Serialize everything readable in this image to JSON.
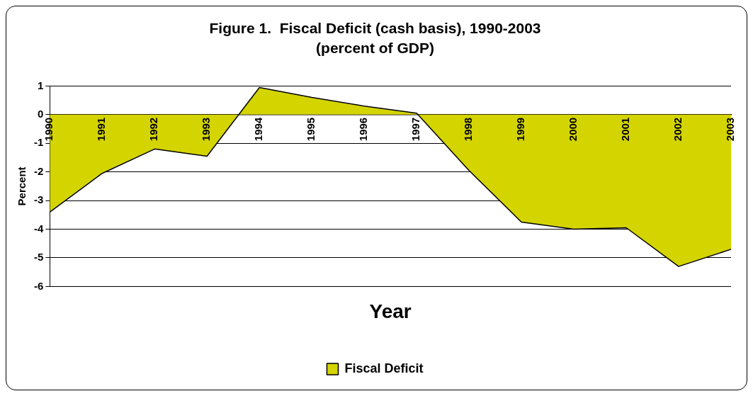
{
  "chart_data": {
    "type": "area",
    "title": "Figure 1.  Fiscal Deficit (cash basis), 1990-2003",
    "subtitle": "(percent of GDP)",
    "xlabel": "Year",
    "ylabel": "Percent",
    "categories": [
      "1990",
      "1991",
      "1992",
      "1993",
      "1994",
      "1995",
      "1996",
      "1997",
      "1998",
      "1999",
      "2000",
      "2001",
      "2002",
      "2003"
    ],
    "series": [
      {
        "name": "Fiscal Deficit",
        "color": "#d4d400",
        "values": [
          -3.4,
          -2.05,
          -1.2,
          -1.45,
          0.95,
          0.6,
          0.3,
          0.05,
          -1.95,
          -3.75,
          -4.0,
          -3.95,
          -5.3,
          -4.7
        ]
      }
    ],
    "ylim": [
      -6,
      1
    ],
    "yticks": [
      -6,
      -5,
      -4,
      -3,
      -2,
      -1,
      0,
      1
    ],
    "grid": "y",
    "legend": "bottom",
    "marker": "none",
    "line_style": "solid"
  }
}
